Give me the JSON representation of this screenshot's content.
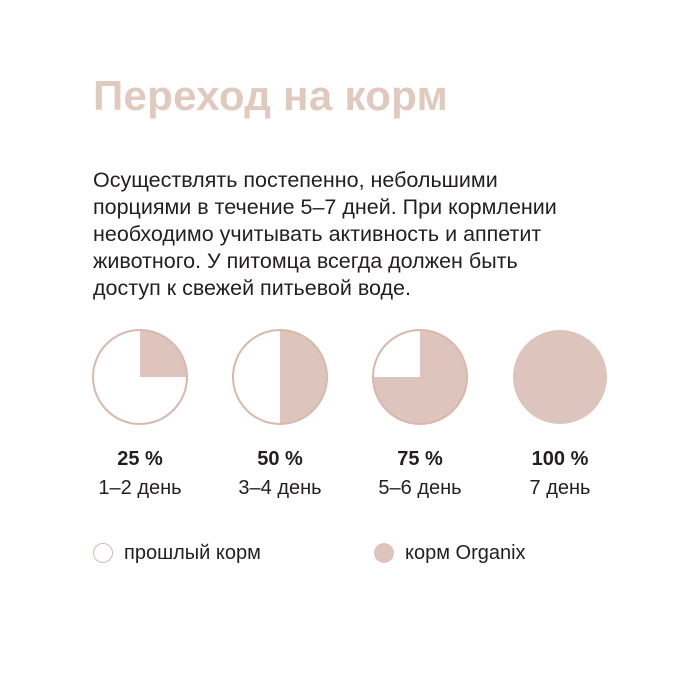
{
  "title": "Переход на корм",
  "description": [
    "Осуществлять постепенно, небольшими",
    "порциями в течение 5–7 дней. При кормлении",
    "необходимо учитывать активность и аппетит",
    "животного. У питомца всегда должен быть",
    "доступ к свежей питьевой воде."
  ],
  "stages": [
    {
      "percent_label": "25 %",
      "days_label": "1–2 день",
      "new_food_fraction": 0.25
    },
    {
      "percent_label": "50 %",
      "days_label": "3–4 день",
      "new_food_fraction": 0.5
    },
    {
      "percent_label": "75 %",
      "days_label": "5–6 день",
      "new_food_fraction": 0.75
    },
    {
      "percent_label": "100 %",
      "days_label": "7 день",
      "new_food_fraction": 1.0
    }
  ],
  "legend": {
    "old_food_label": "прошлый корм",
    "new_food_label": "корм Organix"
  },
  "colors": {
    "title": "#e0c9bf",
    "new_food_fill": "#ddc5bd",
    "old_food_fill": "#ffffff",
    "outline": "#d8b8ad",
    "text": "#231f20"
  }
}
